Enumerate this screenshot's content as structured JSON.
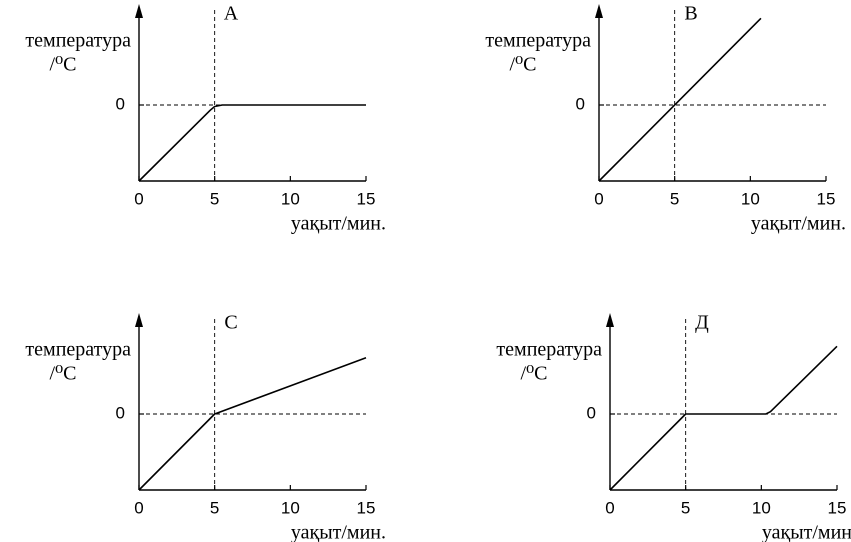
{
  "chart_data": [
    {
      "type": "line",
      "title": "A",
      "ylabel": [
        "температура",
        "/⁰C"
      ],
      "xlabel": "уақыт/мин.",
      "x": [
        0,
        4.7,
        5,
        5.5,
        6,
        15
      ],
      "series": [
        {
          "color": "#000000",
          "values": [
            -1,
            -0.07,
            -0.02,
            0,
            0,
            0
          ]
        }
      ],
      "xlim": [
        0,
        15
      ],
      "xticks": [
        0,
        5,
        10,
        15
      ],
      "ylim": [
        -1,
        1.25
      ],
      "yticks": [
        0
      ],
      "reference_lines": {
        "x": 5,
        "y": 0
      }
    },
    {
      "type": "line",
      "title": "B",
      "ylabel": [
        "температура",
        "/⁰C"
      ],
      "xlabel": "уақыт/мин.",
      "x": [
        0,
        10.7
      ],
      "series": [
        {
          "color": "#000000",
          "values": [
            -1,
            1.14
          ]
        }
      ],
      "xlim": [
        0,
        15
      ],
      "xticks": [
        0,
        5,
        10,
        15
      ],
      "ylim": [
        -1,
        1.25
      ],
      "yticks": [
        0
      ],
      "reference_lines": {
        "x": 5,
        "y": 0
      }
    },
    {
      "type": "line",
      "title": "C",
      "ylabel": [
        "температура",
        "/⁰C"
      ],
      "xlabel": "уақыт/мин.",
      "x": [
        0,
        5,
        15
      ],
      "series": [
        {
          "color": "#000000",
          "values": [
            -1,
            0,
            0.74
          ]
        }
      ],
      "xlim": [
        0,
        15
      ],
      "xticks": [
        0,
        5,
        10,
        15
      ],
      "ylim": [
        -1,
        1.25
      ],
      "yticks": [
        0
      ],
      "reference_lines": {
        "x": 5,
        "y": 0
      }
    },
    {
      "type": "line",
      "title": "Д",
      "ylabel": [
        "температура",
        "/⁰C"
      ],
      "xlabel": "уақыт/мин.",
      "x": [
        0,
        5,
        10.3,
        10.6,
        15
      ],
      "series": [
        {
          "color": "#000000",
          "values": [
            -1,
            0,
            0,
            0.03,
            0.89
          ]
        }
      ],
      "xlim": [
        0,
        15
      ],
      "xticks": [
        0,
        5,
        10,
        15
      ],
      "ylim": [
        -1,
        1.25
      ],
      "yticks": [
        0
      ],
      "reference_lines": {
        "x": 5,
        "y": 0
      }
    }
  ]
}
